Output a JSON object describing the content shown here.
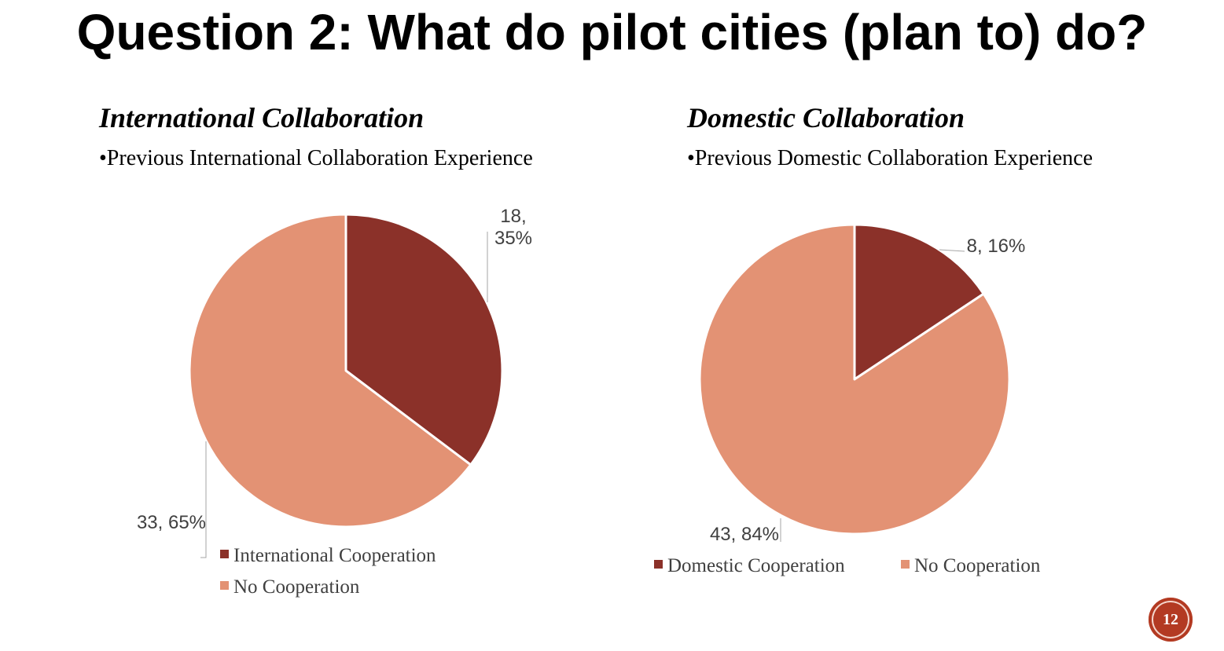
{
  "slide": {
    "title": "Question 2: What do pilot cities (plan to) do?",
    "page_number": "12"
  },
  "sections": [
    {
      "heading": "International Collaboration",
      "bullet": "•Previous International Collaboration Experience"
    },
    {
      "heading": "Domestic Collaboration",
      "bullet": "•Previous Domestic Collaboration Experience"
    }
  ],
  "colors": {
    "cooperation": "#8b3129",
    "no_cooperation": "#e39274",
    "leader_line": "#a6a6a6",
    "label_text": "#404040"
  },
  "chart_data": [
    {
      "type": "pie",
      "title": "",
      "slices": [
        {
          "name": "International Cooperation",
          "value": 18,
          "label": "18, 35%"
        },
        {
          "name": "No Cooperation",
          "value": 33,
          "label": "33, 65%"
        }
      ],
      "legend": [
        "International Cooperation",
        "No Cooperation"
      ],
      "legend_position": "bottom"
    },
    {
      "type": "pie",
      "title": "",
      "slices": [
        {
          "name": "Domestic Cooperation",
          "value": 8,
          "label": "8, 16%"
        },
        {
          "name": "No Cooperation",
          "value": 43,
          "label": "43, 84%"
        }
      ],
      "legend": [
        "Domestic Cooperation",
        "No Cooperation"
      ],
      "legend_position": "bottom"
    }
  ]
}
